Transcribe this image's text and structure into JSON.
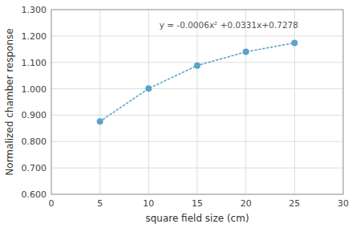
{
  "chart_data": {
    "type": "line",
    "x": [
      5,
      10,
      15,
      20,
      25
    ],
    "values": [
      0.876,
      1.001,
      1.088,
      1.14,
      1.174
    ],
    "color": "#5BA3C9",
    "marker": "circle",
    "line_style": "dotted",
    "annotations": [
      "y = -0.0006x² +0.0331x+0.7278"
    ],
    "xlabel": "square field size (cm)",
    "ylabel": "Normalized chamber response",
    "xlim": [
      0,
      30
    ],
    "ylim": [
      0.6,
      1.3
    ],
    "xticks": [
      0,
      5,
      10,
      15,
      20,
      25,
      30
    ],
    "yticks": [
      {
        "value": 0.6,
        "label": "0.600"
      },
      {
        "value": 0.7,
        "label": "0.700"
      },
      {
        "value": 0.8,
        "label": "0.800"
      },
      {
        "value": 0.9,
        "label": "0.900"
      },
      {
        "value": 1.0,
        "label": "1.000"
      },
      {
        "value": 1.1,
        "label": "1.100"
      },
      {
        "value": 1.2,
        "label": "1.200"
      },
      {
        "value": 1.3,
        "label": "1.300"
      }
    ],
    "grid": true
  }
}
